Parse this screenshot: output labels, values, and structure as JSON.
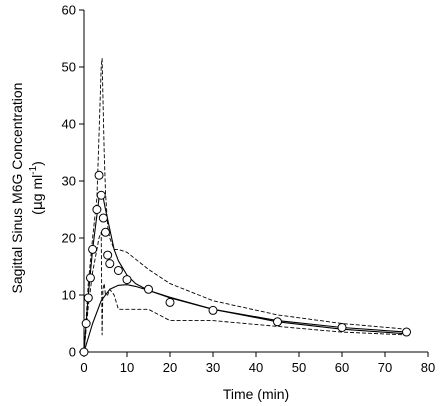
{
  "chart_data": {
    "type": "scatter",
    "title": "",
    "xlabel": "Time (min)",
    "ylabel_line1": "Sagittal Sinus M6G Concentration",
    "ylabel_line2_prefix": "(",
    "ylabel_mu": "μ",
    "ylabel_line2_mid": "g ml",
    "ylabel_sup": "-1",
    "ylabel_line2_suffix": ")",
    "xlim": [
      0,
      80
    ],
    "ylim": [
      0,
      60
    ],
    "x_ticks": [
      0,
      10,
      20,
      30,
      40,
      50,
      60,
      70,
      80
    ],
    "y_ticks": [
      0,
      10,
      20,
      30,
      40,
      50,
      60
    ],
    "grid": false,
    "legend": "none",
    "series": [
      {
        "kind": "points",
        "marker": "open-circle",
        "x": [
          0,
          0.5,
          1,
          1.5,
          2,
          3,
          3.5,
          4,
          4.5,
          5,
          5.5,
          6,
          8,
          10,
          15,
          20,
          30,
          45,
          60,
          75
        ],
        "y": [
          0,
          5,
          9.5,
          13,
          18,
          25,
          31,
          27.5,
          23.5,
          21,
          17,
          15.5,
          14.3,
          12.7,
          11,
          8.7,
          7.3,
          5.3,
          4.3,
          3.5
        ]
      },
      {
        "kind": "line",
        "style": "solid",
        "x": [
          0,
          1,
          2,
          3,
          3.5,
          4,
          4.5,
          5,
          6,
          7,
          8,
          10,
          12,
          15,
          20,
          30,
          45,
          60,
          75
        ],
        "y": [
          0,
          10,
          18,
          24,
          27,
          28,
          27,
          25,
          21.5,
          18,
          16,
          13.5,
          12,
          10.8,
          9.5,
          7.5,
          5.5,
          4.3,
          3.5
        ]
      },
      {
        "kind": "line",
        "style": "solid",
        "x": [
          0,
          2,
          4,
          6,
          8,
          10,
          12,
          15,
          20,
          30,
          45,
          60,
          75
        ],
        "y": [
          0,
          5,
          9,
          11,
          11.7,
          11.8,
          11.5,
          10.8,
          9.6,
          7.5,
          5.3,
          4,
          3.2
        ]
      },
      {
        "kind": "line",
        "style": "dashed",
        "x": [
          0,
          0.5,
          1,
          2,
          3,
          3.5,
          4,
          4.2,
          4.4,
          4.7,
          5,
          5.5,
          6,
          7,
          8,
          10,
          15,
          20,
          30,
          45,
          60,
          75
        ],
        "y": [
          0,
          6,
          12,
          20,
          27,
          38,
          50,
          51.5,
          45,
          35,
          28,
          22,
          20,
          18,
          18,
          17.5,
          14.5,
          12,
          9,
          6.5,
          5,
          4
        ]
      },
      {
        "kind": "line",
        "style": "dashed",
        "x": [
          0,
          1,
          2,
          3,
          3.5,
          4,
          4.2,
          4.4,
          4.7,
          5,
          5.5,
          6,
          7,
          8,
          10,
          15,
          20,
          30,
          45,
          60,
          75
        ],
        "y": [
          0,
          8,
          14,
          18,
          20,
          21,
          3,
          11,
          12,
          10,
          10,
          11,
          10,
          7.5,
          7.5,
          7.5,
          5.5,
          5.5,
          4.5,
          3.5,
          3
        ]
      }
    ]
  }
}
